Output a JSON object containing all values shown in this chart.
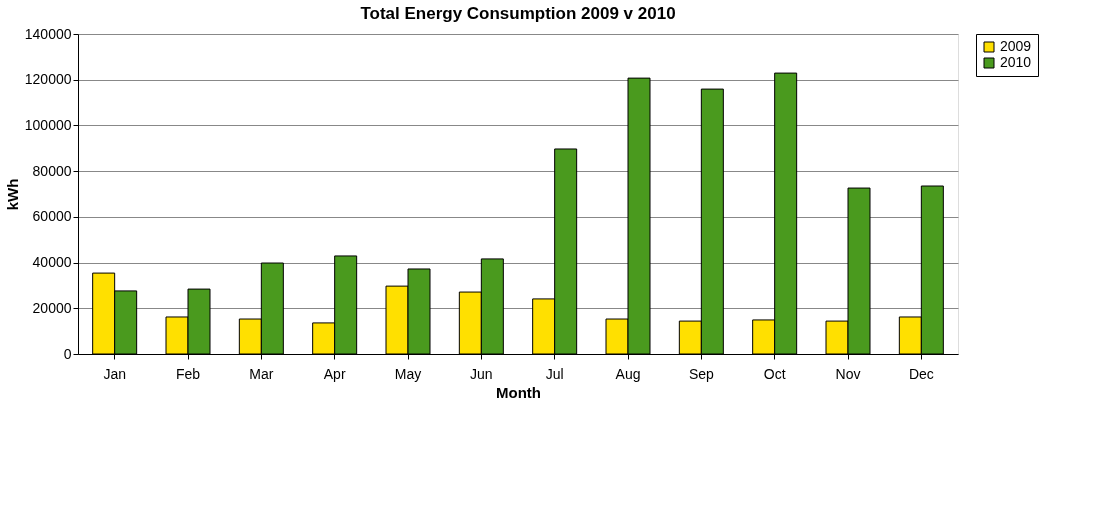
{
  "chart_data": {
    "type": "bar",
    "title": "Total Energy Consumption 2009 v 2010",
    "xlabel": "Month",
    "ylabel": "kWh",
    "categories": [
      "Jan",
      "Feb",
      "Mar",
      "Apr",
      "May",
      "Jun",
      "Jul",
      "Aug",
      "Sep",
      "Oct",
      "Nov",
      "Dec"
    ],
    "series": [
      {
        "name": "2009",
        "color": "#ffe000",
        "values": [
          35400,
          16200,
          15300,
          13600,
          29700,
          27100,
          24100,
          15300,
          14400,
          14900,
          14400,
          16200
        ]
      },
      {
        "name": "2010",
        "color": "#4a9a1e",
        "values": [
          27600,
          28400,
          39800,
          42900,
          37200,
          41600,
          89700,
          120700,
          115900,
          122900,
          72600,
          73500
        ]
      }
    ],
    "ylim": [
      0,
      140000
    ],
    "yticks": [
      0,
      20000,
      40000,
      60000,
      80000,
      100000,
      120000,
      140000
    ],
    "grid": "y",
    "legend": "right"
  }
}
